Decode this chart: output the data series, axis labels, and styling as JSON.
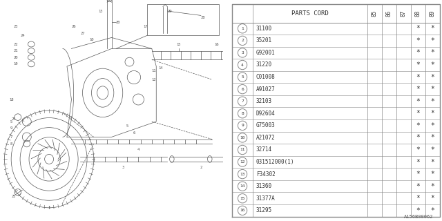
{
  "diagram_id": "A156B00062",
  "rows": [
    {
      "num": 1,
      "part": "31100"
    },
    {
      "num": 2,
      "part": "35201"
    },
    {
      "num": 3,
      "part": "G92001"
    },
    {
      "num": 4,
      "part": "31220"
    },
    {
      "num": 5,
      "part": "C01008"
    },
    {
      "num": 6,
      "part": "A91027"
    },
    {
      "num": 7,
      "part": "32103"
    },
    {
      "num": 8,
      "part": "D92604"
    },
    {
      "num": 9,
      "part": "G75003"
    },
    {
      "num": 10,
      "part": "A21072"
    },
    {
      "num": 11,
      "part": "32714"
    },
    {
      "num": 12,
      "part": "031512000(1)"
    },
    {
      "num": 13,
      "part": "F34302"
    },
    {
      "num": 14,
      "part": "31360"
    },
    {
      "num": 15,
      "part": "31377A"
    },
    {
      "num": 16,
      "part": "31295"
    }
  ],
  "years": [
    "85",
    "86",
    "87",
    "88",
    "89"
  ],
  "star_year_indices": [
    3,
    4
  ],
  "bg_color": "#ffffff",
  "line_color": "#555555",
  "table_line_color": "#888888"
}
